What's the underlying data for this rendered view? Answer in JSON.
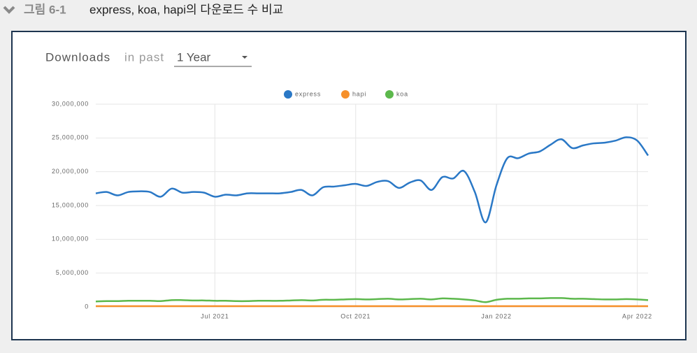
{
  "figure_label": "그림 6-1",
  "caption": "express, koa, hapi의 다운로드 수 비교",
  "chart_data": {
    "type": "line",
    "title": "Downloads",
    "title_suffix": "in past",
    "period": "1 Year",
    "categories": [
      null,
      null,
      null,
      null,
      null,
      null,
      null,
      null,
      null,
      null,
      null,
      "Jul 2021",
      null,
      null,
      null,
      null,
      null,
      null,
      null,
      null,
      null,
      null,
      null,
      null,
      "Oct 2021",
      null,
      null,
      null,
      null,
      null,
      null,
      null,
      null,
      null,
      null,
      null,
      null,
      "Jan 2022",
      null,
      null,
      null,
      null,
      null,
      null,
      null,
      null,
      null,
      null,
      null,
      null,
      "Apr 2022",
      null
    ],
    "series": [
      {
        "name": "express",
        "color": "#2a78c6",
        "values": [
          16800000,
          17000000,
          16500000,
          17000000,
          17100000,
          17000000,
          16300000,
          17500000,
          16900000,
          17000000,
          16900000,
          16300000,
          16600000,
          16500000,
          16800000,
          16800000,
          16800000,
          16800000,
          17000000,
          17300000,
          16500000,
          17700000,
          17800000,
          18000000,
          18200000,
          17900000,
          18500000,
          18600000,
          17600000,
          18400000,
          18700000,
          17300000,
          19200000,
          19000000,
          20100000,
          17000000,
          12500000,
          18000000,
          22000000,
          22000000,
          22700000,
          23000000,
          24000000,
          24800000,
          23500000,
          23900000,
          24200000,
          24300000,
          24600000,
          25100000,
          24600000,
          22400000
        ]
      },
      {
        "name": "hapi",
        "color": "#f6902a",
        "values": [
          100000,
          100000,
          100000,
          100000,
          100000,
          100000,
          100000,
          100000,
          100000,
          100000,
          100000,
          100000,
          100000,
          100000,
          100000,
          100000,
          100000,
          100000,
          100000,
          100000,
          100000,
          100000,
          100000,
          100000,
          100000,
          100000,
          100000,
          100000,
          100000,
          100000,
          100000,
          100000,
          100000,
          100000,
          100000,
          100000,
          100000,
          100000,
          100000,
          100000,
          100000,
          100000,
          100000,
          100000,
          100000,
          100000,
          100000,
          100000,
          100000,
          100000,
          100000,
          100000
        ]
      },
      {
        "name": "koa",
        "color": "#5cb84c",
        "values": [
          800000,
          850000,
          850000,
          900000,
          900000,
          900000,
          850000,
          1000000,
          1000000,
          950000,
          950000,
          900000,
          900000,
          850000,
          850000,
          900000,
          900000,
          900000,
          950000,
          1000000,
          950000,
          1050000,
          1050000,
          1100000,
          1150000,
          1100000,
          1150000,
          1200000,
          1100000,
          1150000,
          1200000,
          1100000,
          1250000,
          1200000,
          1100000,
          950000,
          700000,
          1050000,
          1200000,
          1200000,
          1250000,
          1250000,
          1300000,
          1300000,
          1200000,
          1200000,
          1150000,
          1100000,
          1100000,
          1150000,
          1100000,
          1000000
        ]
      }
    ],
    "ylim": [
      0,
      30000000
    ],
    "yticks": [
      0,
      {
        "value": 5000000,
        "label": "5,000,000"
      },
      {
        "value": 10000000,
        "label": "10,000,000"
      },
      {
        "value": 15000000,
        "label": "15,000,000"
      },
      {
        "value": 20000000,
        "label": "20,000,000"
      },
      {
        "value": 25000000,
        "label": "25,000,000"
      },
      {
        "value": 30000000,
        "label": "30,000,000"
      }
    ],
    "grid": true
  }
}
